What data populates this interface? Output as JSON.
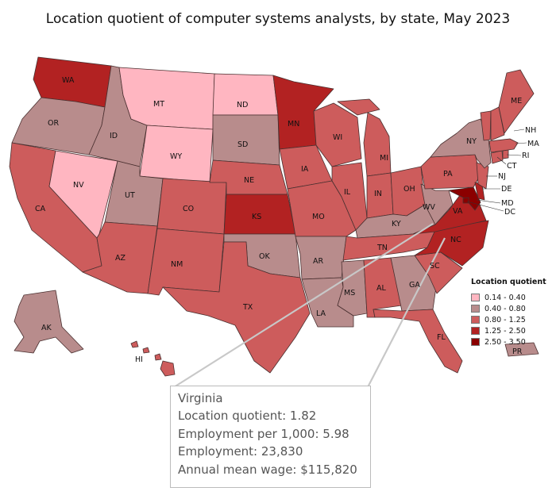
{
  "title": "Location quotient of computer systems analysts, by state, May 2023",
  "legend": {
    "title": "Location quotient",
    "items": [
      {
        "label": "0.14 - 0.40",
        "color": "#ffb6c1"
      },
      {
        "label": "0.40 - 0.80",
        "color": "#b88c8c"
      },
      {
        "label": "0.80 - 1.25",
        "color": "#cd5c5c"
      },
      {
        "label": "1.25 - 2.50",
        "color": "#b22222"
      },
      {
        "label": "2.50 - 3.50",
        "color": "#8b0000"
      }
    ]
  },
  "colors": {
    "c1": "#ffb6c1",
    "c2": "#b88c8c",
    "c3": "#cd5c5c",
    "c4": "#b22222",
    "c5": "#8b0000",
    "leader": "#c8c8c8"
  },
  "tooltip": {
    "state": "Virginia",
    "lines": [
      "Location quotient: 1.82",
      "Employment per 1,000: 5.98",
      "Employment: 23,830",
      "Annual mean wage: $115,820"
    ]
  },
  "state_labels": {
    "WA": "WA",
    "OR": "OR",
    "CA": "CA",
    "NV": "NV",
    "ID": "ID",
    "MT": "MT",
    "WY": "WY",
    "UT": "UT",
    "AZ": "AZ",
    "CO": "CO",
    "NM": "NM",
    "ND": "ND",
    "SD": "SD",
    "NE": "NE",
    "KS": "KS",
    "OK": "OK",
    "TX": "TX",
    "MN": "MN",
    "IA": "IA",
    "MO": "MO",
    "AR": "AR",
    "LA": "LA",
    "WI": "WI",
    "IL": "IL",
    "MI": "MI",
    "IN": "IN",
    "OH": "OH",
    "KY": "KY",
    "TN": "TN",
    "MS": "MS",
    "AL": "AL",
    "GA": "GA",
    "FL": "FL",
    "SC": "SC",
    "NC": "NC",
    "VA": "VA",
    "WV": "WV",
    "PA": "PA",
    "NY": "NY",
    "ME": "ME",
    "NH": "NH",
    "MA": "MA",
    "RI": "RI",
    "CT": "CT",
    "NJ": "NJ",
    "DE": "DE",
    "MD": "MD",
    "DC": "DC",
    "AK": "AK",
    "HI": "HI",
    "PR": "PR"
  }
}
